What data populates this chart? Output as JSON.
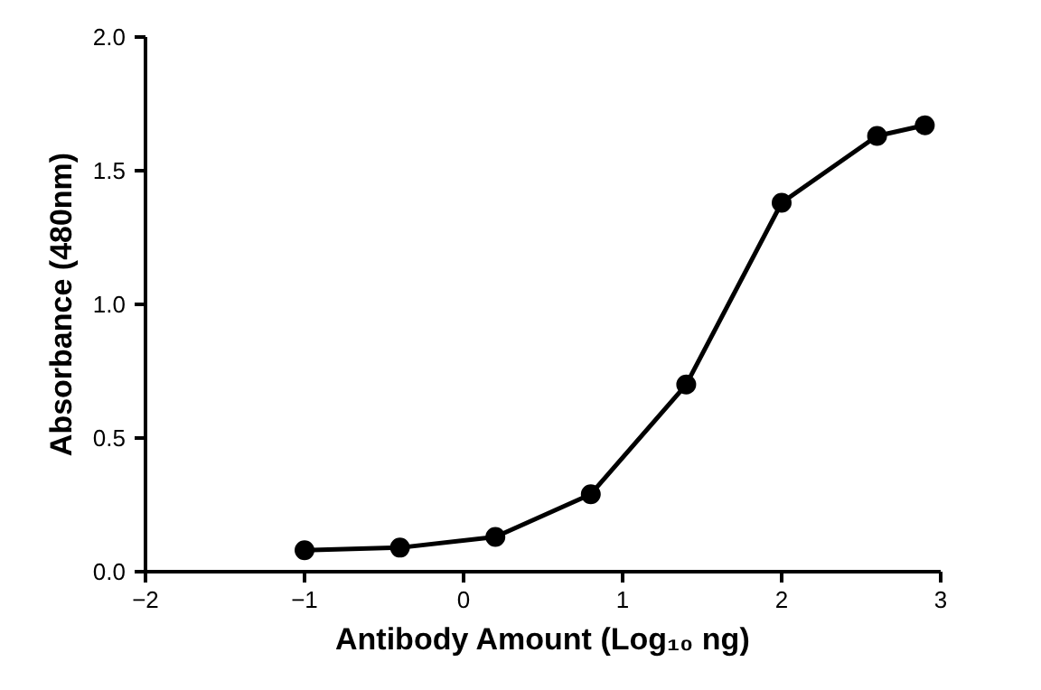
{
  "chart_data": {
    "type": "line",
    "xlabel": "Antibody Amount (Log₁₀ ng)",
    "ylabel": "Absorbance (480nm)",
    "x": [
      -1,
      -0.4,
      0.2,
      0.8,
      1.4,
      2,
      2.6,
      2.9
    ],
    "series": [
      {
        "color": "#000000",
        "values": [
          0.08,
          0.09,
          0.13,
          0.29,
          0.7,
          1.38,
          1.63,
          1.67
        ]
      }
    ],
    "xlim": [
      -2,
      3
    ],
    "xticks": [
      -2,
      -1,
      0,
      1,
      2,
      3
    ],
    "ylim": [
      0,
      2
    ],
    "yticks": [
      {
        "value": 0,
        "label": "0.0"
      },
      {
        "value": 0.5,
        "label": "0.5"
      },
      {
        "value": 1,
        "label": "1.0"
      },
      {
        "value": 1.5,
        "label": "1.5"
      },
      {
        "value": 2,
        "label": "2.0"
      }
    ],
    "grid": false,
    "marker": "circle",
    "line_style": "solid"
  }
}
